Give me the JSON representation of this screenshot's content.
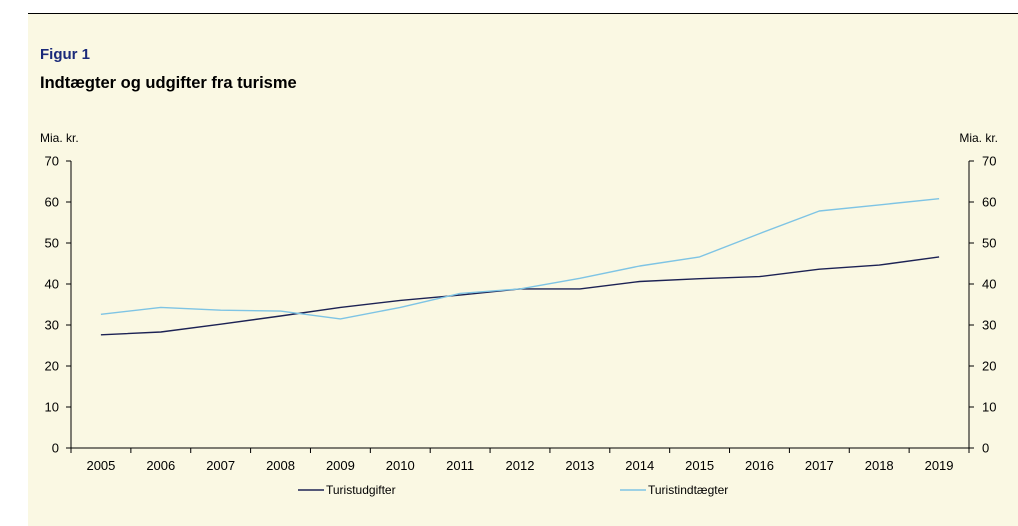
{
  "figure": {
    "label": "Figur 1",
    "title": "Indtægter og udgifter fra turisme"
  },
  "colors": {
    "background": "#faf8e3",
    "label": "#1a2a7a",
    "series_dark": "#1c2254",
    "series_light": "#7ec4e4",
    "axis": "#000000"
  },
  "chart_data": {
    "type": "line",
    "x": [
      "2005",
      "2006",
      "2007",
      "2008",
      "2009",
      "2010",
      "2011",
      "2012",
      "2013",
      "2014",
      "2015",
      "2016",
      "2017",
      "2018",
      "2019"
    ],
    "y_left_unit": "Mia. kr.",
    "y_right_unit": "Mia. kr.",
    "ylim": [
      0,
      70
    ],
    "yticks": [
      0,
      10,
      20,
      30,
      40,
      50,
      60,
      70
    ],
    "grid": false,
    "legend_position": "bottom",
    "series": [
      {
        "name": "Turistudgifter",
        "color": "#1c2254",
        "values": [
          27.6,
          28.3,
          30.2,
          32.2,
          34.3,
          36.0,
          37.3,
          38.8,
          38.8,
          40.6,
          41.3,
          41.8,
          43.6,
          44.6,
          46.6
        ]
      },
      {
        "name": "Turistindtægter",
        "color": "#7ec4e4",
        "values": [
          32.6,
          34.3,
          33.6,
          33.4,
          31.5,
          34.3,
          37.7,
          38.8,
          41.4,
          44.4,
          46.6,
          52.3,
          57.8,
          59.3,
          60.8
        ]
      }
    ]
  }
}
